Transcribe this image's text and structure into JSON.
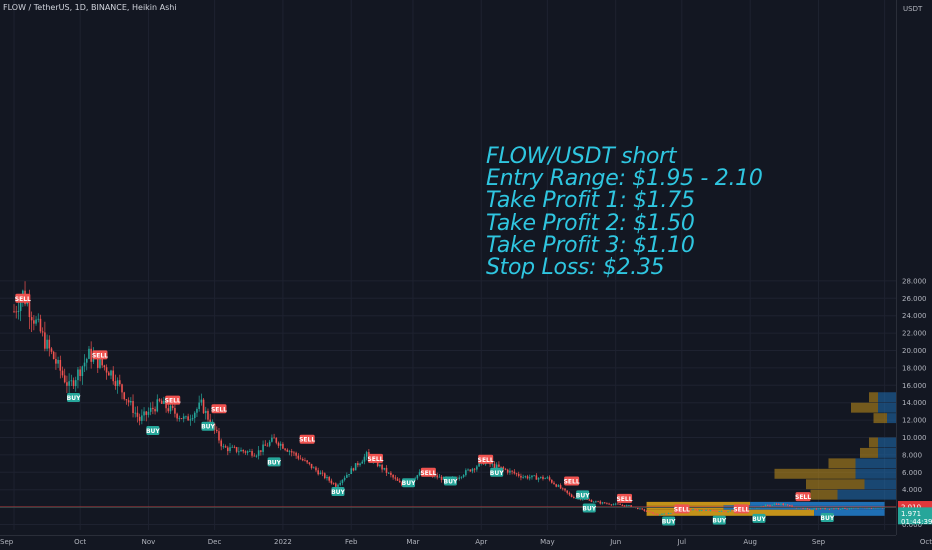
{
  "header": {
    "symbol_line": "FLOW / TetherUS, 1D, BINANCE, Heikin Ashi"
  },
  "annotation": {
    "lines": [
      "FLOW/USDT short",
      "Entry Range: $1.95 - 2.10",
      "Take Profit 1: $1.75",
      "Take Profit 2: $1.50",
      "Take Profit 3: $1.10",
      "Stop Loss: $2.35"
    ]
  },
  "colors": {
    "background": "#131722",
    "grid": "#1e2230",
    "up": "#26a69a",
    "down": "#ef5350",
    "annotation": "#2fc6e0",
    "resistance_line": "#e0373b",
    "sell_label": "#ef5350",
    "buy_label": "#26a69a",
    "volume_profile_gold": "#c4921a",
    "volume_profile_blue": "#1f6fb5"
  },
  "chart_data": {
    "type": "candlestick",
    "title": "FLOW / TetherUS, 1D, BINANCE, Heikin Ashi",
    "price_scale_label": "USDT",
    "y_ticks": [
      "28.000",
      "26.000",
      "24.000",
      "22.000",
      "20.000",
      "18.000",
      "16.000",
      "14.000",
      "12.000",
      "10.000",
      "8.000",
      "6.000",
      "4.000",
      "2.000",
      "0.000"
    ],
    "x_ticks": [
      "Sep",
      "Oct",
      "Nov",
      "Dec",
      "2022",
      "Feb",
      "Mar",
      "Apr",
      "May",
      "Jun",
      "Jul",
      "Aug",
      "Sep",
      "Oct"
    ],
    "price_labels": [
      {
        "text": "2.010",
        "value": 2.01,
        "color": "#e0373b"
      },
      {
        "text": "1.971",
        "value": 1.971,
        "color": "#26a69a"
      },
      {
        "text": "01:44:39",
        "value": 1.42,
        "color": "#26a69a"
      }
    ],
    "resistance_level": 2.01,
    "current_price": 1.971,
    "price_series_approx": [
      {
        "date": "2021-09-01",
        "price": 24.5
      },
      {
        "date": "2021-09-05",
        "price": 26.5
      },
      {
        "date": "2021-09-15",
        "price": 21.0
      },
      {
        "date": "2021-09-26",
        "price": 15.8
      },
      {
        "date": "2021-10-05",
        "price": 19.5
      },
      {
        "date": "2021-10-15",
        "price": 17.5
      },
      {
        "date": "2021-10-28",
        "price": 12.0
      },
      {
        "date": "2021-11-06",
        "price": 14.0
      },
      {
        "date": "2021-11-18",
        "price": 12.0
      },
      {
        "date": "2021-11-25",
        "price": 13.8
      },
      {
        "date": "2021-12-05",
        "price": 8.8
      },
      {
        "date": "2021-12-20",
        "price": 8.2
      },
      {
        "date": "2021-12-28",
        "price": 9.8
      },
      {
        "date": "2022-01-12",
        "price": 7.0
      },
      {
        "date": "2022-01-25",
        "price": 4.5
      },
      {
        "date": "2022-02-08",
        "price": 8.0
      },
      {
        "date": "2022-02-24",
        "price": 4.5
      },
      {
        "date": "2022-03-05",
        "price": 6.0
      },
      {
        "date": "2022-03-18",
        "price": 5.0
      },
      {
        "date": "2022-04-02",
        "price": 7.2
      },
      {
        "date": "2022-04-20",
        "price": 5.5
      },
      {
        "date": "2022-05-01",
        "price": 5.3
      },
      {
        "date": "2022-05-12",
        "price": 3.2
      },
      {
        "date": "2022-05-25",
        "price": 2.5
      },
      {
        "date": "2022-06-08",
        "price": 2.1
      },
      {
        "date": "2022-06-20",
        "price": 1.1
      },
      {
        "date": "2022-07-05",
        "price": 1.7
      },
      {
        "date": "2022-07-20",
        "price": 1.5
      },
      {
        "date": "2022-08-01",
        "price": 1.9
      },
      {
        "date": "2022-08-14",
        "price": 2.4
      },
      {
        "date": "2022-08-25",
        "price": 1.8
      },
      {
        "date": "2022-09-01",
        "price": 1.8
      },
      {
        "date": "2022-09-20",
        "price": 1.9
      },
      {
        "date": "2022-10-01",
        "price": 1.971
      }
    ],
    "signals": [
      {
        "label": "SELL",
        "date": "2021-09-05",
        "price": 26.0
      },
      {
        "label": "SELL",
        "date": "2021-10-10",
        "price": 19.5
      },
      {
        "label": "BUY",
        "date": "2021-09-28",
        "price": 14.6
      },
      {
        "label": "SELL",
        "date": "2021-11-12",
        "price": 14.3
      },
      {
        "label": "BUY",
        "date": "2021-11-03",
        "price": 10.8
      },
      {
        "label": "BUY",
        "date": "2021-11-28",
        "price": 11.3
      },
      {
        "label": "SELL",
        "date": "2021-12-03",
        "price": 13.3
      },
      {
        "label": "BUY",
        "date": "2021-12-28",
        "price": 7.2
      },
      {
        "label": "SELL",
        "date": "2022-01-12",
        "price": 9.8
      },
      {
        "label": "BUY",
        "date": "2022-01-26",
        "price": 3.8
      },
      {
        "label": "SELL",
        "date": "2022-02-12",
        "price": 7.6
      },
      {
        "label": "BUY",
        "date": "2022-02-27",
        "price": 4.8
      },
      {
        "label": "SELL",
        "date": "2022-03-08",
        "price": 6.0
      },
      {
        "label": "BUY",
        "date": "2022-03-18",
        "price": 5.0
      },
      {
        "label": "SELL",
        "date": "2022-04-03",
        "price": 7.5
      },
      {
        "label": "BUY",
        "date": "2022-04-08",
        "price": 6.0
      },
      {
        "label": "SELL",
        "date": "2022-05-12",
        "price": 5.0
      },
      {
        "label": "BUY",
        "date": "2022-05-17",
        "price": 3.4
      },
      {
        "label": "BUY",
        "date": "2022-05-20",
        "price": 1.9
      },
      {
        "label": "SELL",
        "date": "2022-06-05",
        "price": 3.0
      },
      {
        "label": "BUY",
        "date": "2022-06-25",
        "price": 0.4
      },
      {
        "label": "SELL",
        "date": "2022-07-01",
        "price": 1.8
      },
      {
        "label": "BUY",
        "date": "2022-07-18",
        "price": 0.5
      },
      {
        "label": "SELL",
        "date": "2022-07-28",
        "price": 1.8
      },
      {
        "label": "BUY",
        "date": "2022-08-05",
        "price": 0.7
      },
      {
        "label": "SELL",
        "date": "2022-08-25",
        "price": 3.2
      },
      {
        "label": "BUY",
        "date": "2022-09-05",
        "price": 0.8
      }
    ],
    "volume_profile_right": [
      {
        "price_low": 2.8,
        "price_high": 4.0,
        "gold": 0.3,
        "blue": 0.65
      },
      {
        "price_low": 4.0,
        "price_high": 5.2,
        "gold": 0.65,
        "blue": 0.35
      },
      {
        "price_low": 5.2,
        "price_high": 6.4,
        "gold": 0.9,
        "blue": 0.45
      },
      {
        "price_low": 6.4,
        "price_high": 7.6,
        "gold": 0.3,
        "blue": 0.45
      },
      {
        "price_low": 7.6,
        "price_high": 8.8,
        "gold": 0.2,
        "blue": 0.2
      },
      {
        "price_low": 8.8,
        "price_high": 10.0,
        "gold": 0.1,
        "blue": 0.2
      },
      {
        "price_low": 11.6,
        "price_high": 12.8,
        "gold": 0.15,
        "blue": 0.1
      },
      {
        "price_low": 12.8,
        "price_high": 14.0,
        "gold": 0.3,
        "blue": 0.2
      },
      {
        "price_low": 14.0,
        "price_high": 15.2,
        "gold": 0.1,
        "blue": 0.2
      }
    ],
    "volume_profile_lower": [
      {
        "price_low": 2.2,
        "price_high": 2.6,
        "gold_x_end_date": "2022-08-01",
        "blue_x_end_date": "2022-10-01"
      },
      {
        "price_low": 1.7,
        "price_high": 2.2,
        "gold_x_end_date": "2022-07-20",
        "blue_x_end_date": "2022-10-01"
      },
      {
        "price_low": 1.0,
        "price_high": 1.7,
        "gold_x_end_date": "2022-08-30",
        "blue_x_end_date": "2022-10-01"
      }
    ]
  }
}
